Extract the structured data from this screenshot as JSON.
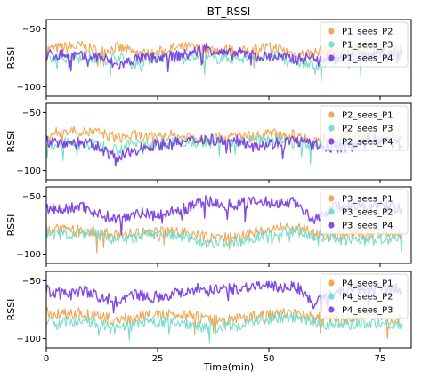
{
  "colors": {
    "orange": "#f0a048",
    "teal": "#6fdcc8",
    "purple": "#7a3fe0"
  },
  "chart_data": {
    "type": "line",
    "title": "BT_RSSI",
    "xlabel": "Time(min)",
    "xlim": [
      0,
      82
    ],
    "x_ticks": [
      0,
      25,
      50,
      75
    ],
    "shared_x": true,
    "grid": false,
    "panels": [
      {
        "ylabel": "RSSI",
        "ylim": [
          -108,
          -42
        ],
        "y_ticks": [
          -50,
          -100
        ],
        "legend_position": "top-right",
        "series": [
          {
            "name": "P1_sees_P2",
            "color": "orange",
            "x": [
              0,
              4,
              8,
              12,
              16,
              20,
              24,
              28,
              32,
              36,
              40,
              44,
              48,
              52,
              56,
              60,
              64,
              68,
              72,
              76,
              80
            ],
            "y": [
              -68,
              -66,
              -65,
              -70,
              -66,
              -71,
              -72,
              -67,
              -66,
              -68,
              -68,
              -70,
              -66,
              -67,
              -72,
              -71,
              -68,
              -70,
              -66,
              -68,
              -67
            ]
          },
          {
            "name": "P1_sees_P3",
            "color": "teal",
            "x": [
              0,
              4,
              8,
              12,
              16,
              20,
              24,
              28,
              32,
              36,
              40,
              44,
              48,
              52,
              56,
              60,
              64,
              68,
              72,
              76,
              80
            ],
            "y": [
              -76,
              -75,
              -73,
              -77,
              -74,
              -80,
              -75,
              -74,
              -73,
              -76,
              -75,
              -76,
              -74,
              -74,
              -78,
              -82,
              -77,
              -72,
              -74,
              -71,
              -74
            ]
          },
          {
            "name": "P1_sees_P4",
            "color": "purple",
            "x": [
              0,
              4,
              8,
              12,
              16,
              20,
              24,
              28,
              32,
              36,
              40,
              44,
              48,
              52,
              56,
              60,
              64,
              68,
              72,
              76,
              80
            ],
            "y": [
              -73,
              -72,
              -74,
              -74,
              -82,
              -76,
              -75,
              -74,
              -72,
              -66,
              -72,
              -71,
              -74,
              -74,
              -76,
              -74,
              -75,
              -76,
              -73,
              -70,
              -72
            ]
          }
        ]
      },
      {
        "ylabel": "RSSI",
        "ylim": [
          -108,
          -42
        ],
        "y_ticks": [
          -50,
          -100
        ],
        "legend_position": "top-right",
        "series": [
          {
            "name": "P2_sees_P1",
            "color": "orange",
            "x": [
              0,
              4,
              8,
              12,
              16,
              20,
              24,
              28,
              32,
              36,
              40,
              44,
              48,
              52,
              56,
              60,
              64,
              68,
              72,
              76,
              80
            ],
            "y": [
              -70,
              -66,
              -66,
              -68,
              -72,
              -70,
              -72,
              -70,
              -71,
              -72,
              -72,
              -70,
              -70,
              -68,
              -70,
              -74,
              -72,
              -70,
              -70,
              -72,
              -68
            ]
          },
          {
            "name": "P2_sees_P3",
            "color": "teal",
            "x": [
              0,
              4,
              8,
              12,
              16,
              20,
              24,
              28,
              32,
              36,
              40,
              44,
              48,
              52,
              56,
              60,
              64,
              68,
              72,
              76,
              80
            ],
            "y": [
              -78,
              -76,
              -78,
              -78,
              -82,
              -76,
              -76,
              -76,
              -74,
              -76,
              -74,
              -76,
              -74,
              -74,
              -76,
              -78,
              -76,
              -74,
              -76,
              -74,
              -72
            ]
          },
          {
            "name": "P2_sees_P4",
            "color": "purple",
            "x": [
              0,
              4,
              8,
              12,
              16,
              20,
              24,
              28,
              32,
              36,
              40,
              44,
              48,
              52,
              56,
              60,
              64,
              68,
              72,
              76,
              80
            ],
            "y": [
              -75,
              -76,
              -76,
              -80,
              -90,
              -82,
              -78,
              -77,
              -75,
              -72,
              -75,
              -75,
              -78,
              -76,
              -74,
              -78,
              -80,
              -80,
              -72,
              -75,
              -78
            ]
          }
        ]
      },
      {
        "ylabel": "RSSI",
        "ylim": [
          -108,
          -42
        ],
        "y_ticks": [
          -50,
          -100
        ],
        "legend_position": "top-right",
        "series": [
          {
            "name": "P3_sees_P1",
            "color": "orange",
            "x": [
              0,
              4,
              8,
              12,
              16,
              20,
              24,
              28,
              32,
              36,
              40,
              44,
              48,
              52,
              56,
              60,
              64,
              68,
              72,
              76,
              80
            ],
            "y": [
              -78,
              -80,
              -80,
              -82,
              -84,
              -82,
              -82,
              -80,
              -82,
              -86,
              -86,
              -84,
              -80,
              -78,
              -78,
              -82,
              -84,
              -82,
              -83,
              -82,
              -84
            ]
          },
          {
            "name": "P3_sees_P2",
            "color": "teal",
            "x": [
              0,
              4,
              8,
              12,
              16,
              20,
              24,
              28,
              32,
              36,
              40,
              44,
              48,
              52,
              56,
              60,
              64,
              68,
              72,
              76,
              80
            ],
            "y": [
              -82,
              -83,
              -82,
              -84,
              -88,
              -86,
              -82,
              -84,
              -86,
              -90,
              -90,
              -88,
              -84,
              -82,
              -80,
              -84,
              -86,
              -88,
              -88,
              -87,
              -88
            ]
          },
          {
            "name": "P3_sees_P4",
            "color": "purple",
            "x": [
              0,
              4,
              8,
              12,
              16,
              20,
              24,
              28,
              32,
              36,
              40,
              44,
              48,
              52,
              56,
              60,
              64,
              68,
              72,
              76,
              80
            ],
            "y": [
              -60,
              -62,
              -58,
              -66,
              -70,
              -64,
              -66,
              -64,
              -60,
              -54,
              -58,
              -56,
              -55,
              -56,
              -55,
              -72,
              -60,
              -58,
              -60,
              -58,
              -62
            ]
          }
        ]
      },
      {
        "ylabel": "RSSI",
        "ylim": [
          -108,
          -42
        ],
        "y_ticks": [
          -50,
          -100
        ],
        "legend_position": "top-right",
        "series": [
          {
            "name": "P4_sees_P1",
            "color": "orange",
            "x": [
              0,
              4,
              8,
              12,
              16,
              20,
              24,
              28,
              32,
              36,
              40,
              44,
              48,
              52,
              56,
              60,
              64,
              68,
              72,
              76,
              80
            ],
            "y": [
              -78,
              -79,
              -78,
              -82,
              -84,
              -82,
              -80,
              -80,
              -79,
              -84,
              -84,
              -82,
              -80,
              -78,
              -78,
              -82,
              -84,
              -82,
              -80,
              -82,
              -84
            ]
          },
          {
            "name": "P4_sees_P2",
            "color": "teal",
            "x": [
              0,
              4,
              8,
              12,
              16,
              20,
              24,
              28,
              32,
              36,
              40,
              44,
              48,
              52,
              56,
              60,
              64,
              68,
              72,
              76,
              80
            ],
            "y": [
              -86,
              -86,
              -84,
              -88,
              -92,
              -88,
              -86,
              -86,
              -88,
              -90,
              -90,
              -88,
              -84,
              -82,
              -82,
              -86,
              -88,
              -88,
              -86,
              -87,
              -88
            ]
          },
          {
            "name": "P4_sees_P3",
            "color": "purple",
            "x": [
              0,
              4,
              8,
              12,
              16,
              20,
              24,
              28,
              32,
              36,
              40,
              44,
              48,
              52,
              56,
              60,
              64,
              68,
              72,
              76,
              80
            ],
            "y": [
              -58,
              -62,
              -58,
              -64,
              -68,
              -62,
              -64,
              -62,
              -58,
              -56,
              -58,
              -56,
              -54,
              -56,
              -54,
              -70,
              -62,
              -58,
              -58,
              -56,
              -58
            ]
          }
        ]
      }
    ]
  }
}
